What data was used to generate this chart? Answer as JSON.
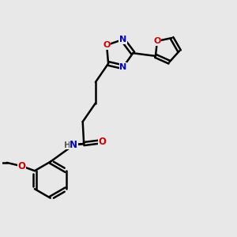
{
  "background_color": "#e8e8e8",
  "line_color": "#000000",
  "bond_width": 1.8,
  "colors": {
    "C": "#000000",
    "N": "#0000cc",
    "O": "#cc0000",
    "H": "#5a5a5a"
  },
  "xlim": [
    0,
    10
  ],
  "ylim": [
    0,
    10
  ]
}
